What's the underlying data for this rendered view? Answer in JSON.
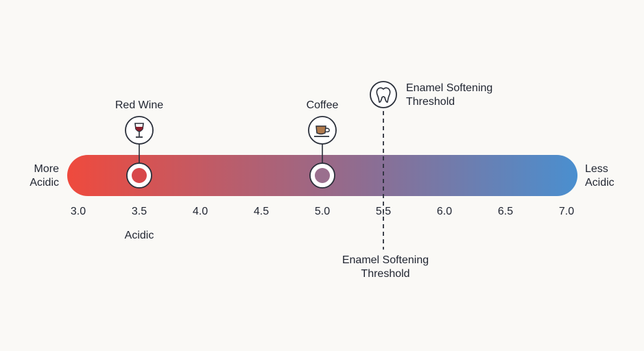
{
  "scale": {
    "min": 3.0,
    "max": 7.0,
    "ticks": [
      "3.0",
      "3.5",
      "4.0",
      "4.5",
      "5.0",
      "5.5",
      "6.0",
      "6.5",
      "7.0"
    ],
    "left_label": [
      "More",
      "Acidic"
    ],
    "right_label": [
      "Less",
      "Acidic"
    ],
    "gradient_colors": [
      "#ef4a3d",
      "#8b6e94",
      "#4a8fcf"
    ]
  },
  "markers": [
    {
      "label": "Red Wine",
      "value": 3.5,
      "icon": "wine-glass-icon",
      "dot_color": "#d8474a"
    },
    {
      "label": "Coffee",
      "value": 5.0,
      "icon": "coffee-cup-icon",
      "dot_color": "#9a6f8e"
    }
  ],
  "threshold": {
    "value": 5.5,
    "top_label": [
      "Enamel Softening",
      "Threshold"
    ],
    "bottom_label": [
      "Enamel Softening",
      "Threshold"
    ],
    "icon": "tooth-icon"
  },
  "below_label": "Acidic"
}
